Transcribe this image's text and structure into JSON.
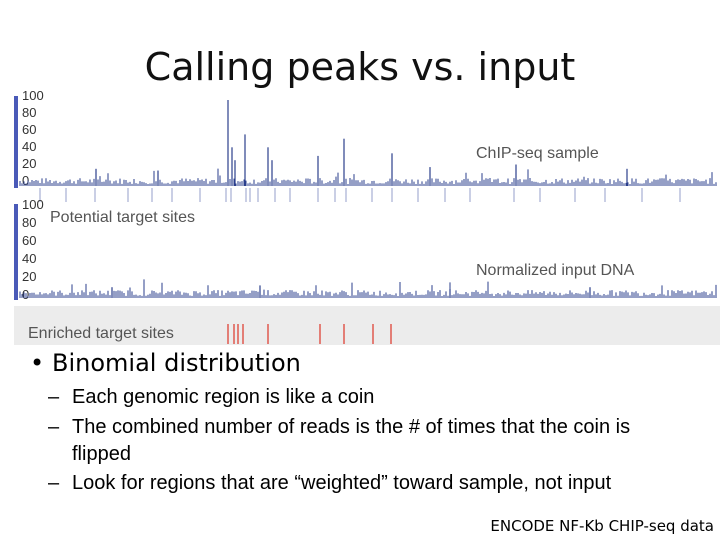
{
  "slide": {
    "title": "Calling peaks vs. input",
    "bullet": "Binomial distribution",
    "sub_bullets": [
      "Each genomic region is like a coin",
      "The combined number of reads is the # of times that the coin is flipped",
      "Look for regions that are “weighted” toward sample, not input"
    ],
    "caption": "ENCODE NF-Kb CHIP-seq data"
  },
  "tracks": {
    "top": {
      "label": "ChIP-seq sample",
      "ticks": [
        "100",
        "80",
        "60",
        "40",
        "20",
        "0"
      ]
    },
    "bottom": {
      "label": "Normalized input DNA",
      "ticks": [
        "100",
        "80",
        "60",
        "40",
        "20",
        "0"
      ],
      "annotation": "Potential target sites"
    },
    "enriched_label": "Enriched target sites",
    "colors": {
      "signal": "#2b3f8c",
      "sites": "#b9bfdc",
      "enriched": "#e05a4e",
      "label": "#555555"
    }
  }
}
